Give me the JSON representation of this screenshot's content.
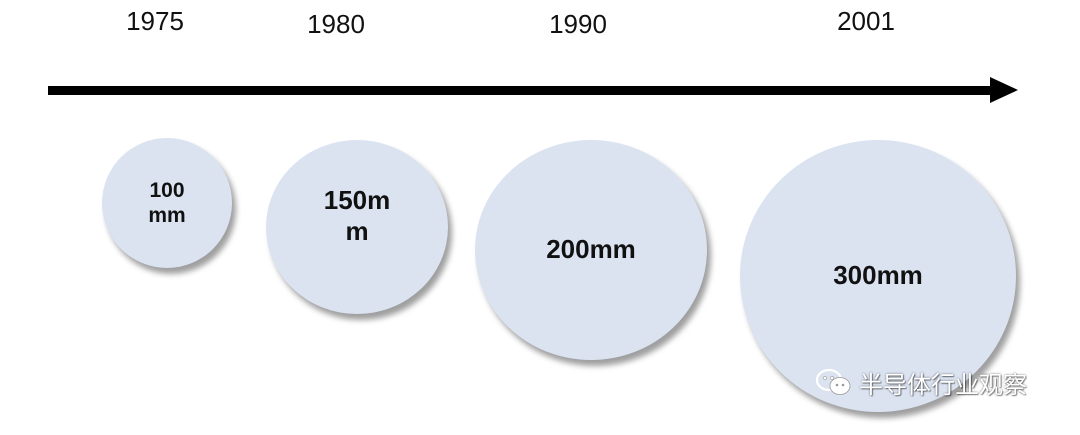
{
  "timeline": {
    "years": [
      "1975",
      "1980",
      "1990",
      "2001"
    ]
  },
  "wafers": [
    {
      "label": "100\nmm"
    },
    {
      "label": "150m\nm"
    },
    {
      "label": "200mm"
    },
    {
      "label": "300mm"
    }
  ],
  "watermark": {
    "text": "半导体行业观察",
    "icon": "wechat-icon"
  },
  "colors": {
    "wafer_fill": "#dbe3f1",
    "axis": "#000000"
  }
}
